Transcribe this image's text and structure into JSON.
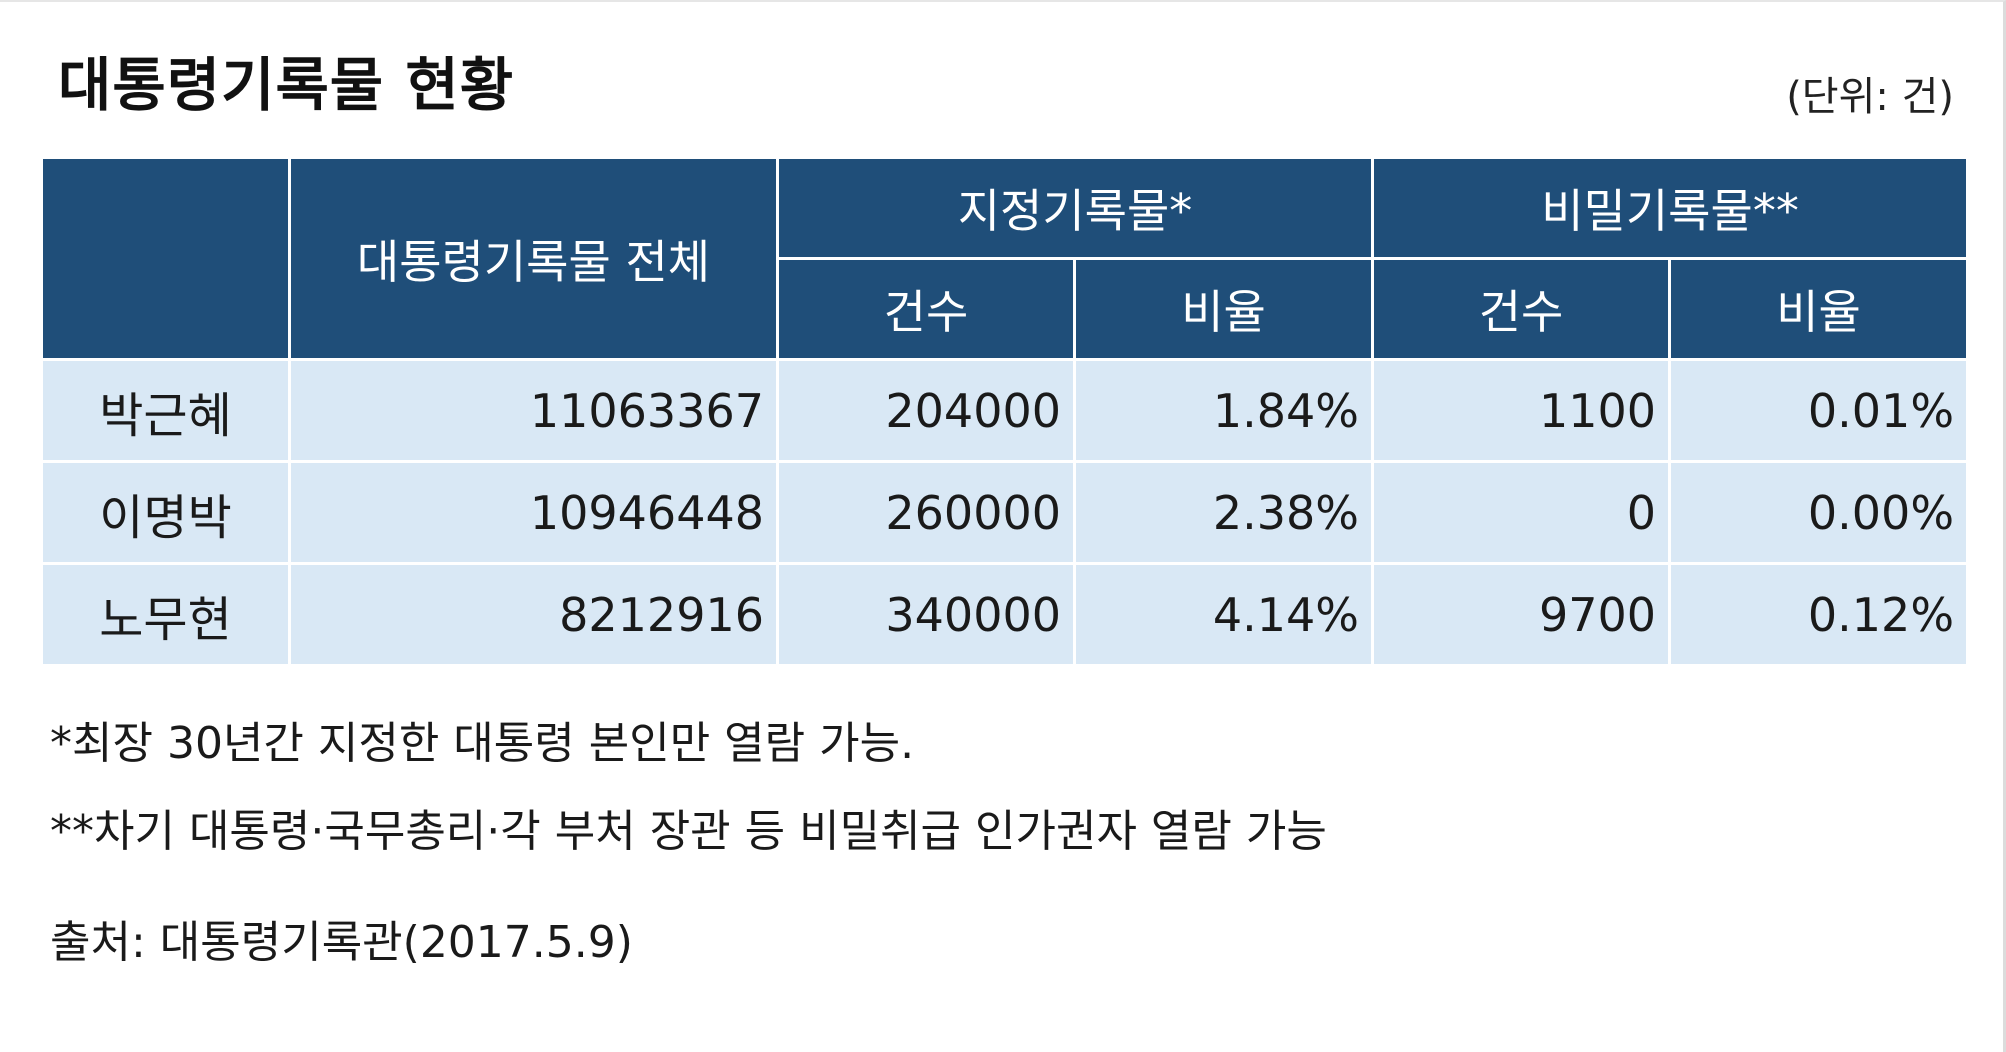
{
  "title": "대통령기록물 현황",
  "unit": "(단위: 건)",
  "chart_data": {
    "type": "table",
    "title": "대통령기록물 현황",
    "unit": "(단위: 건)",
    "header": {
      "total": "대통령기록물 전체",
      "designated": "지정기록물*",
      "secret": "비밀기록물**",
      "count": "건수",
      "ratio": "비율"
    },
    "rows": [
      {
        "name": "박근혜",
        "total": "11063367",
        "designated_count": "204000",
        "designated_ratio": "1.84%",
        "secret_count": "1100",
        "secret_ratio": "0.01%"
      },
      {
        "name": "이명박",
        "total": "10946448",
        "designated_count": "260000",
        "designated_ratio": "2.38%",
        "secret_count": "0",
        "secret_ratio": "0.00%"
      },
      {
        "name": "노무현",
        "total": "8212916",
        "designated_count": "340000",
        "designated_ratio": "4.14%",
        "secret_count": "9700",
        "secret_ratio": "0.12%"
      }
    ],
    "colors": {
      "header_bg": "#1f4e79",
      "header_text": "#ffffff",
      "cell_bg": "#d9e8f5"
    }
  },
  "notes": [
    "*최장 30년간 지정한 대통령 본인만 열람 가능.",
    "**차기 대통령·국무총리·각 부처 장관 등 비밀취급 인가권자 열람 가능"
  ],
  "source": "출처: 대통령기록관(2017.5.9)"
}
